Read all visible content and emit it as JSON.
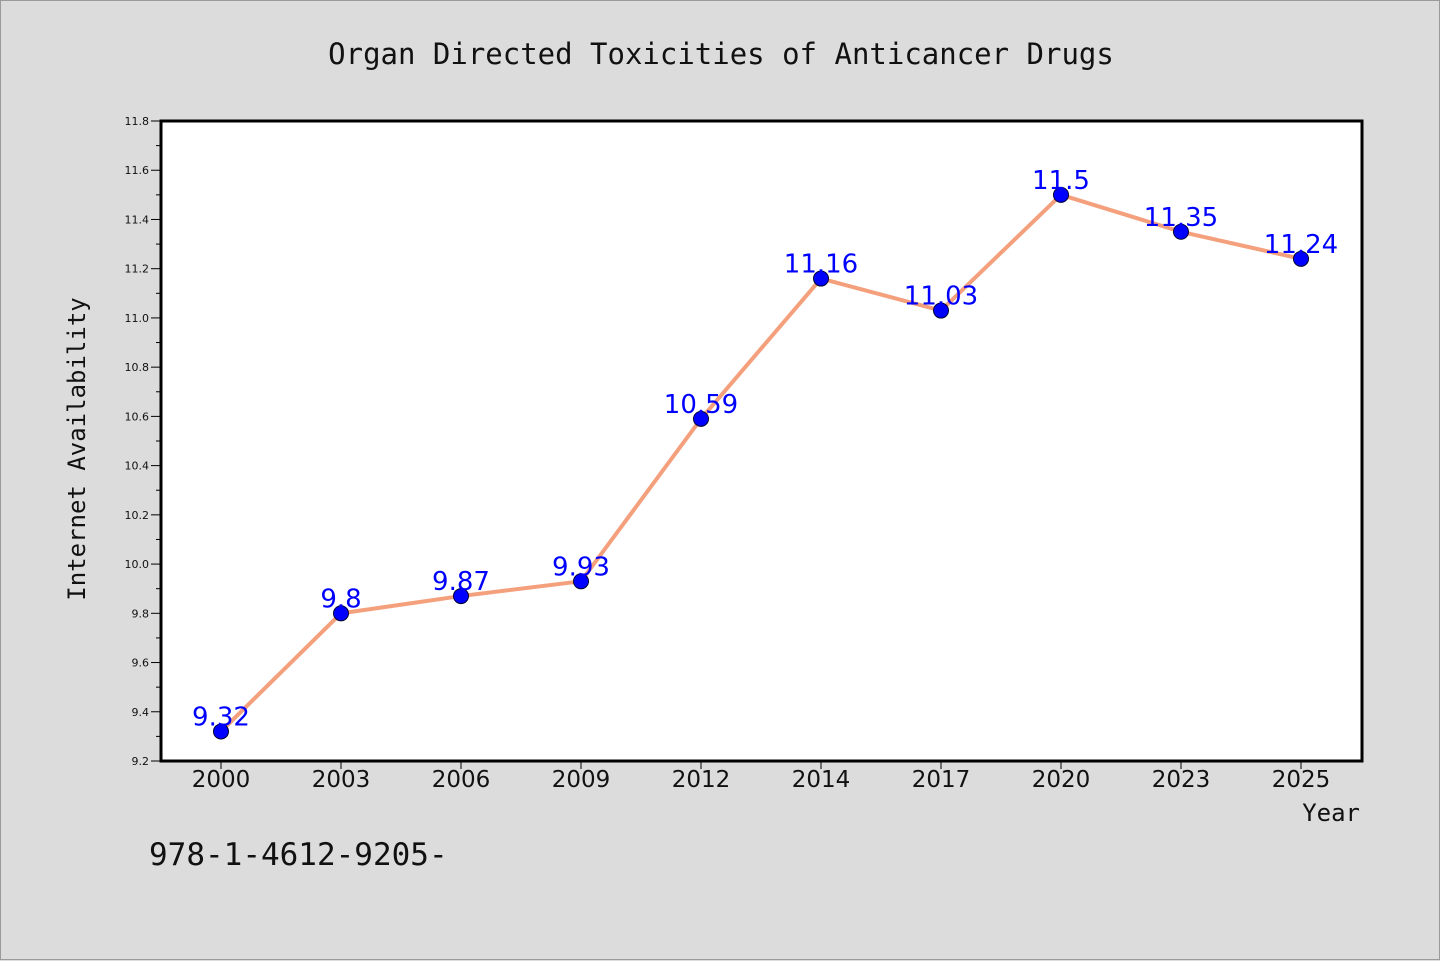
{
  "chart_data": {
    "type": "line",
    "title": "Organ Directed Toxicities of Anticancer Drugs",
    "xlabel": "Year",
    "ylabel": "Internet Availability",
    "categories": [
      "2000",
      "2003",
      "2006",
      "2009",
      "2012",
      "2014",
      "2017",
      "2020",
      "2023",
      "2025"
    ],
    "values": [
      9.32,
      9.8,
      9.87,
      9.93,
      10.59,
      11.16,
      11.03,
      11.5,
      11.35,
      11.24
    ],
    "data_labels": [
      "9.32",
      "9.8",
      "9.87",
      "9.93",
      "10.59",
      "11.16",
      "11.03",
      "11.5",
      "11.35",
      "11.24"
    ],
    "ylim": [
      9.2,
      11.8
    ],
    "yticks": [
      "9.2",
      "9.4",
      "9.6",
      "9.8",
      "10.0",
      "10.2",
      "10.4",
      "10.6",
      "10.8",
      "11.0",
      "11.2",
      "11.4",
      "11.6",
      "11.8"
    ],
    "grid": false,
    "line_color": "#f4a07c",
    "marker_color": "#0000ff"
  },
  "footnote": "978-1-4612-9205-"
}
